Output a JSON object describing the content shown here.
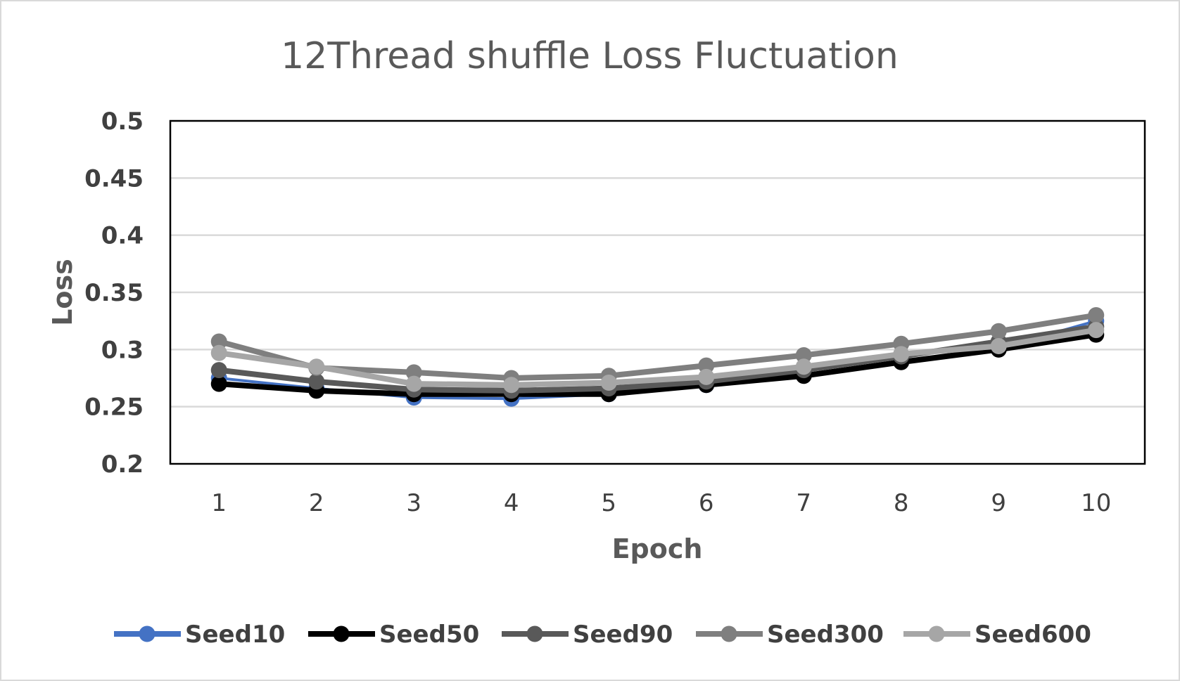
{
  "chart_data": {
    "type": "line",
    "title": "12Thread shuffle Loss Fluctuation",
    "xlabel": "Epoch",
    "ylabel": "Loss",
    "x": [
      1,
      2,
      3,
      4,
      5,
      6,
      7,
      8,
      9,
      10
    ],
    "ylim": [
      0.2,
      0.5
    ],
    "yticks": [
      "0.2",
      "0.25",
      "0.3",
      "0.35",
      "0.4",
      "0.45",
      "0.5"
    ],
    "grid": true,
    "legend_position": "bottom",
    "series": [
      {
        "name": "Seed10",
        "color": "#4472c4",
        "values": [
          0.275,
          0.266,
          0.258,
          0.257,
          0.261,
          0.269,
          0.278,
          0.29,
          0.301,
          0.325
        ]
      },
      {
        "name": "Seed50",
        "color": "#000000",
        "values": [
          0.27,
          0.264,
          0.261,
          0.261,
          0.261,
          0.269,
          0.277,
          0.289,
          0.3,
          0.313
        ]
      },
      {
        "name": "Seed90",
        "color": "#595959",
        "values": [
          0.282,
          0.272,
          0.265,
          0.264,
          0.266,
          0.272,
          0.282,
          0.294,
          0.307,
          0.32
        ]
      },
      {
        "name": "Seed300",
        "color": "#7f7f7f",
        "values": [
          0.307,
          0.284,
          0.28,
          0.275,
          0.277,
          0.286,
          0.295,
          0.305,
          0.316,
          0.33
        ]
      },
      {
        "name": "Seed600",
        "color": "#a6a6a6",
        "values": [
          0.297,
          0.285,
          0.27,
          0.269,
          0.271,
          0.276,
          0.285,
          0.296,
          0.303,
          0.317
        ]
      }
    ]
  }
}
